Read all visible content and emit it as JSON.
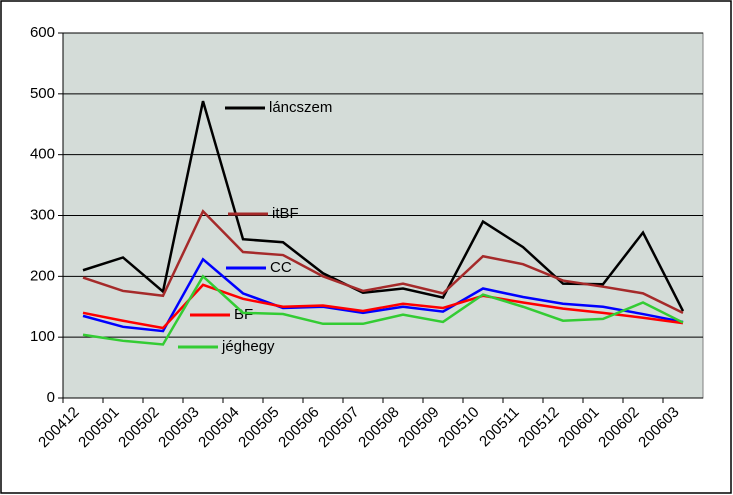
{
  "chart_data": {
    "type": "line",
    "categories": [
      "200412",
      "200501",
      "200502",
      "200503",
      "200504",
      "200505",
      "200506",
      "200507",
      "200508",
      "200509",
      "200510",
      "200511",
      "200512",
      "200601",
      "200602",
      "200603"
    ],
    "series": [
      {
        "name": "láncszem",
        "color": "#000000",
        "values": [
          210,
          231,
          175,
          488,
          261,
          256,
          205,
          173,
          180,
          165,
          290,
          248,
          188,
          187,
          272,
          143
        ]
      },
      {
        "name": "itBF",
        "color": "#a52a2a",
        "values": [
          198,
          176,
          168,
          307,
          240,
          235,
          200,
          176,
          188,
          172,
          233,
          220,
          193,
          183,
          172,
          140
        ]
      },
      {
        "name": "CC",
        "color": "#0000ff",
        "values": [
          135,
          117,
          110,
          228,
          172,
          148,
          150,
          140,
          150,
          142,
          180,
          166,
          155,
          150,
          138,
          125
        ]
      },
      {
        "name": "BF",
        "color": "#ff0000",
        "values": [
          140,
          127,
          115,
          186,
          163,
          150,
          152,
          143,
          155,
          148,
          168,
          157,
          147,
          140,
          132,
          123
        ]
      },
      {
        "name": "jéghegy",
        "color": "#33cc33",
        "values": [
          104,
          94,
          88,
          200,
          140,
          138,
          122,
          122,
          137,
          125,
          170,
          150,
          127,
          130,
          157,
          124
        ]
      }
    ],
    "ylim": [
      0,
      600
    ],
    "yticks": [
      0,
      100,
      200,
      300,
      400,
      500,
      600
    ],
    "grid": true
  }
}
